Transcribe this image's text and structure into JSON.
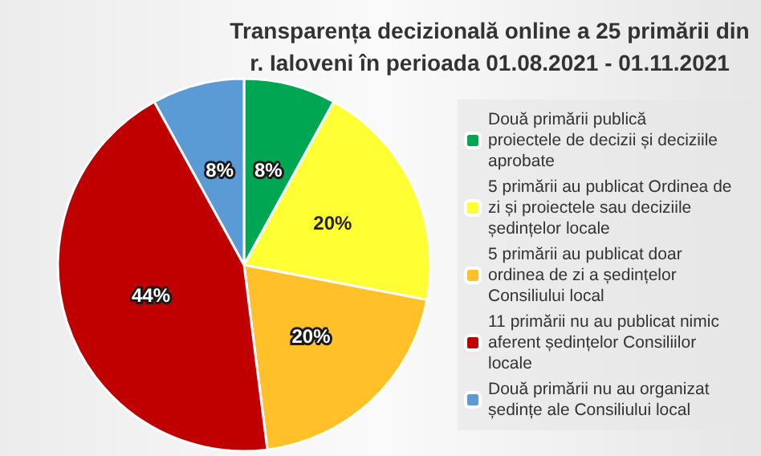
{
  "chart_data": {
    "type": "pie",
    "title": "Transparența decizională online a 25 primării din\nr. Ialoveni în perioada 01.08.2021 - 01.11.2021",
    "categories": [
      "Două primării publică proiectele de decizii și deciziile aprobate",
      "5 primării au publicat Ordinea de zi și proiectele sau deciziile ședințelor locale",
      "5 primării au publicat doar ordinea de zi a ședințelor Consiliului local",
      "11 primării nu au publicat nimic aferent ședințelor Consiliilor locale",
      "Două primării nu au organizat ședințe ale Consiliului local"
    ],
    "values": [
      8,
      20,
      20,
      44,
      8
    ],
    "colors": [
      "#00a651",
      "#ffff33",
      "#ffc02a",
      "#c00000",
      "#5b9bd5"
    ],
    "value_labels": [
      "8%",
      "20%",
      "20%",
      "44%",
      "8%"
    ],
    "legend": "right"
  }
}
